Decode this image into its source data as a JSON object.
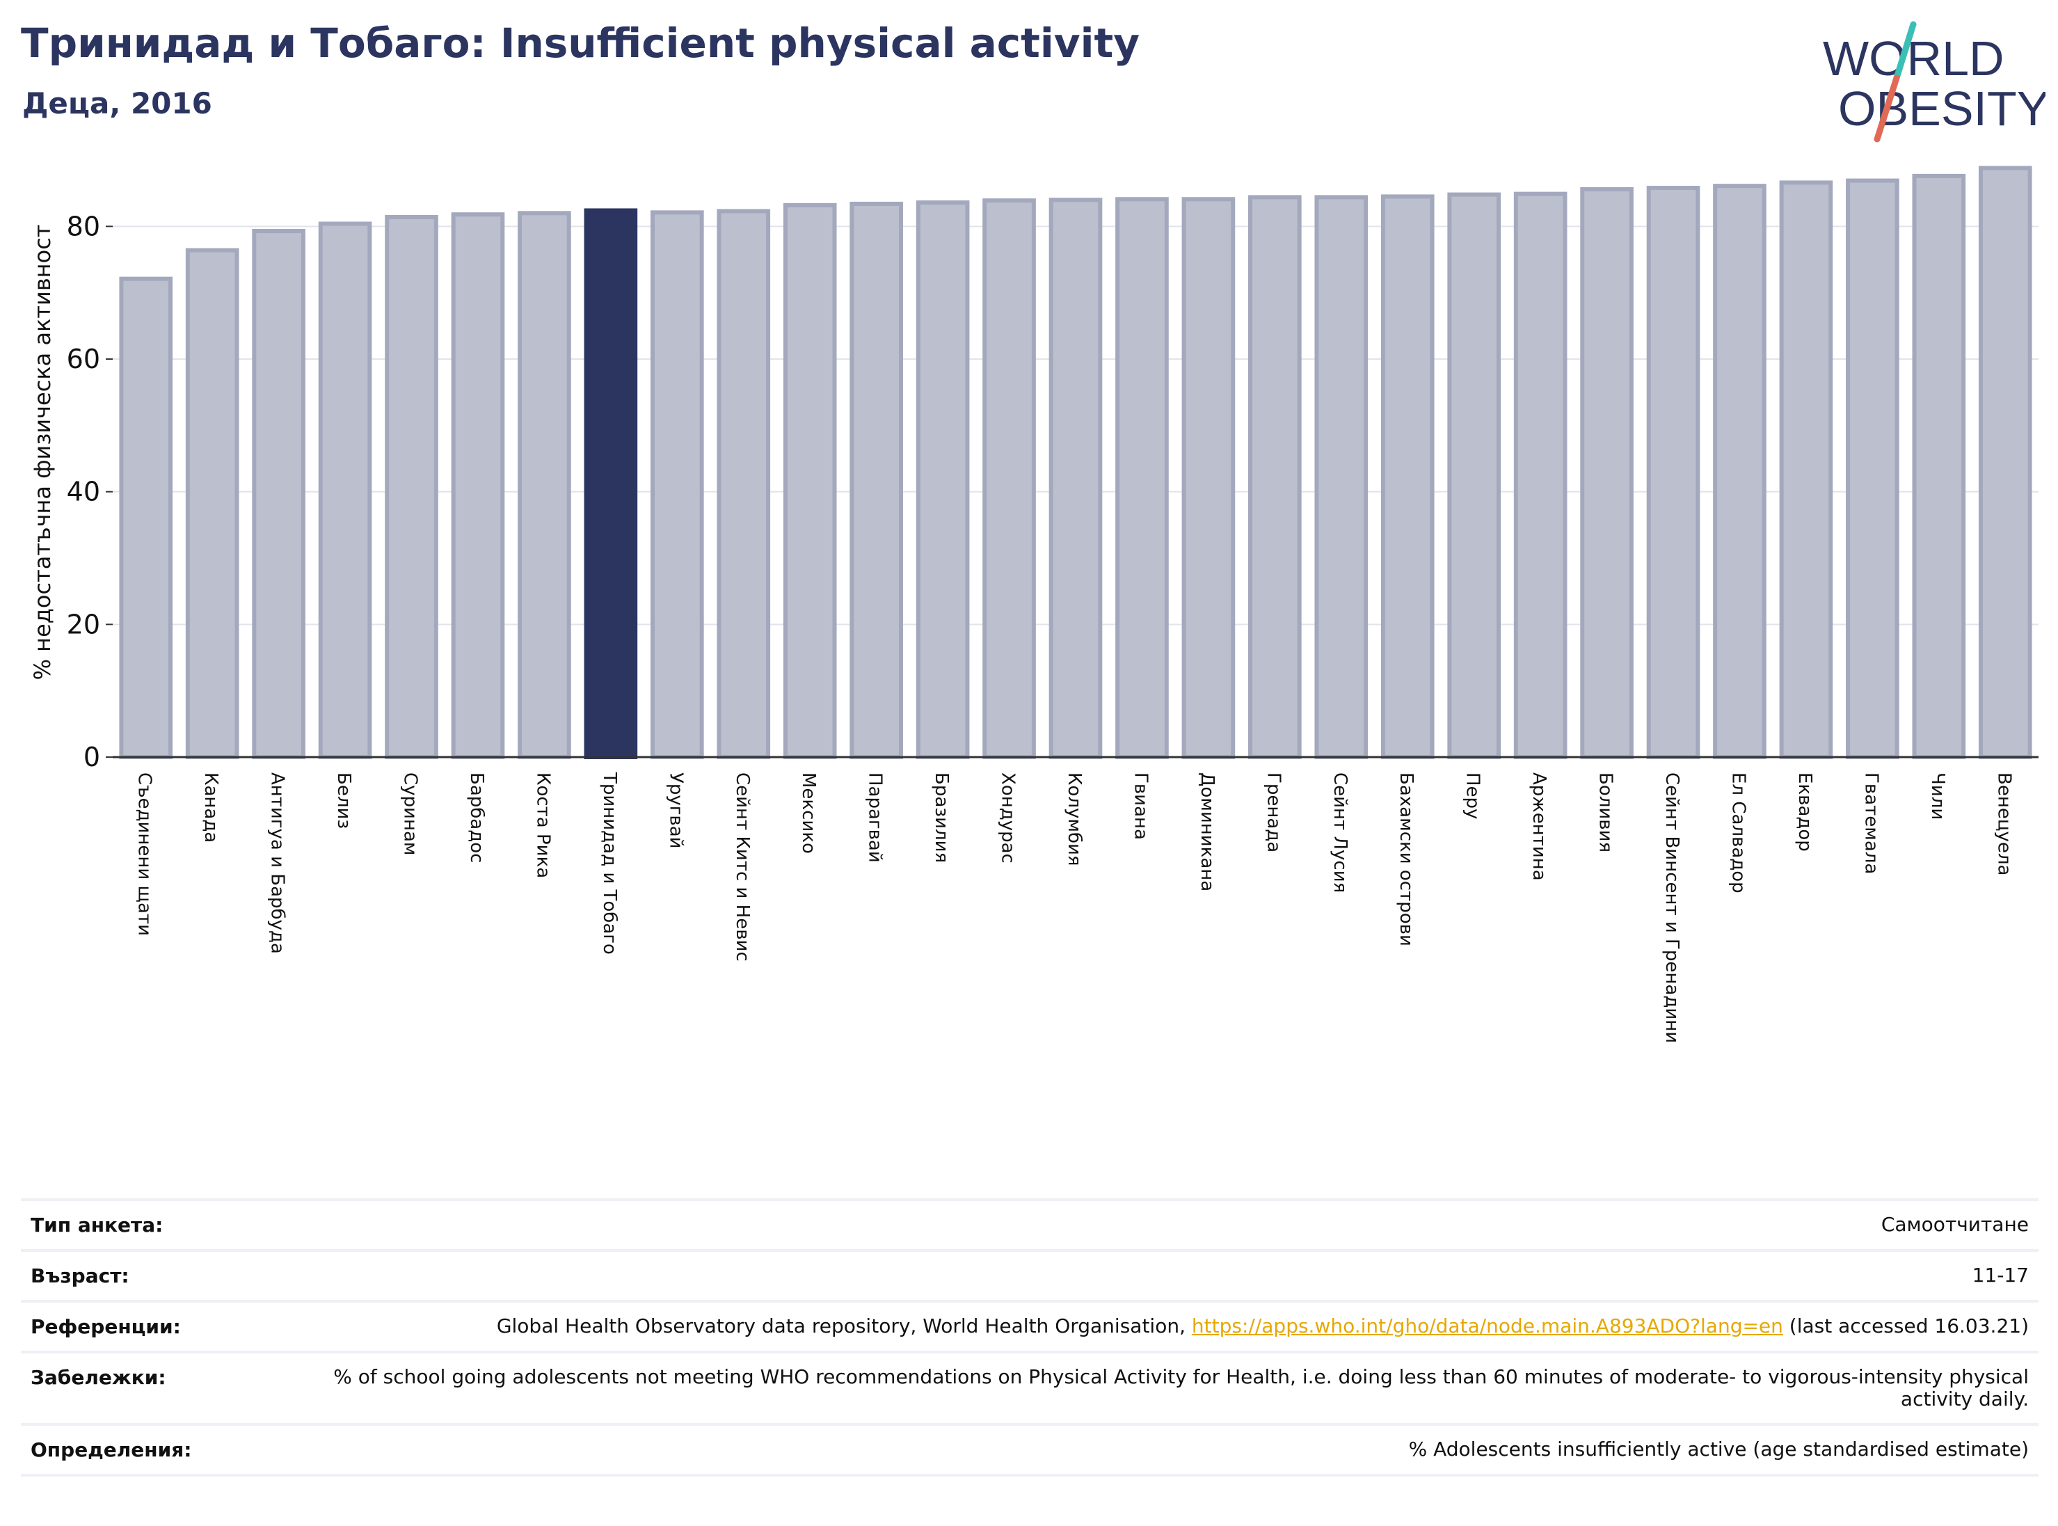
{
  "header": {
    "title": "Тринидад и Тобаго: Insufficient physical activity",
    "subtitle": "Деца, 2016"
  },
  "logo": {
    "line1": "WORLD",
    "line2": "OBESITY",
    "colors": {
      "text": "#2b3560",
      "slash_teal": "#3bbfb5",
      "slash_red": "#e06a55"
    }
  },
  "chart_data": {
    "type": "bar",
    "ylabel": "% недостатъчна физическа активност",
    "ylim": [
      0,
      90
    ],
    "yticks": [
      0,
      20,
      40,
      60,
      80
    ],
    "grid": true,
    "highlight_index": 7,
    "colors": {
      "bar": "#bcbfcd",
      "bar_edge": "#a3a8bd",
      "highlight": "#2b3560",
      "grid": "#e2e4ec",
      "axis": "#333333"
    },
    "categories": [
      "Съединени щати",
      "Канада",
      "Антигуа и Барбуда",
      "Белиз",
      "Суринам",
      "Барбадос",
      "Коста Рика",
      "Тринидад и Тобаго",
      "Уругвай",
      "Сейнт Китс и Невис",
      "Мексико",
      "Парагвай",
      "Бразилия",
      "Хондурас",
      "Колумбия",
      "Гвиана",
      "Доминикана",
      "Гренада",
      "Сейнт Лусия",
      "Бахамски острови",
      "Перу",
      "Аржентина",
      "Боливия",
      "Сейнт Винсент и Гренадини",
      "Ел Салвадор",
      "Еквадор",
      "Гватемала",
      "Чили",
      "Венецуела"
    ],
    "values": [
      72.1,
      76.4,
      79.3,
      80.4,
      81.4,
      81.8,
      82.0,
      82.4,
      82.1,
      82.3,
      83.2,
      83.4,
      83.6,
      83.9,
      84.0,
      84.1,
      84.1,
      84.4,
      84.4,
      84.5,
      84.8,
      84.9,
      85.6,
      85.8,
      86.1,
      86.6,
      86.9,
      87.6,
      88.8
    ]
  },
  "info": {
    "rows": [
      {
        "key": "Тип анкета:",
        "value": "Самоотчитане"
      },
      {
        "key": "Възраст:",
        "value": "11-17"
      },
      {
        "key": "Референции:",
        "value": "Global Health Observatory data repository, World Health Organisation, ",
        "link": "https://apps.who.int/gho/data/node.main.A893ADO?lang=en",
        "suffix": " (last accessed 16.03.21)"
      },
      {
        "key": "Забележки:",
        "value": "% of school going adolescents not meeting WHO recommendations on Physical Activity for Health, i.e. doing less than 60 minutes of moderate- to vigorous-intensity physical activity daily."
      },
      {
        "key": "Определения:",
        "value": "% Adolescents insufficiently active (age standardised estimate)"
      }
    ]
  }
}
